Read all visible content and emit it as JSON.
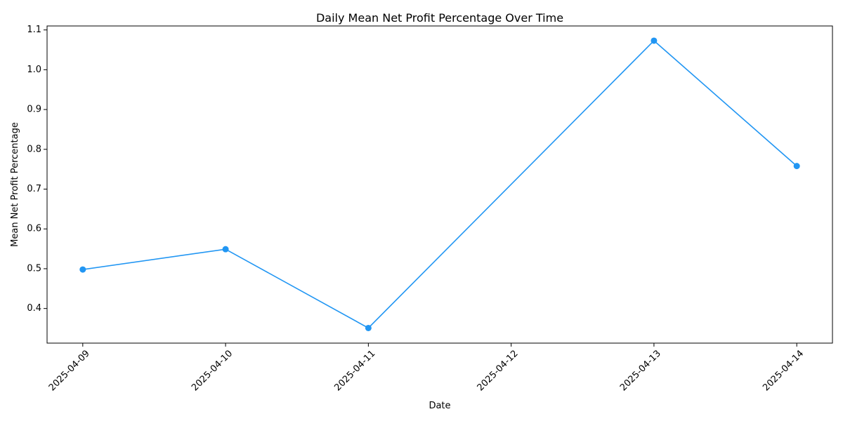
{
  "chart_data": {
    "type": "line",
    "title": "Daily Mean Net Profit Percentage Over Time",
    "xlabel": "Date",
    "ylabel": "Mean Net Profit Percentage",
    "x_ticks": [
      "2025-04-09",
      "2025-04-10",
      "2025-04-11",
      "2025-04-12",
      "2025-04-13",
      "2025-04-14"
    ],
    "y_ticks": [
      "0.4",
      "0.5",
      "0.6",
      "0.7",
      "0.8",
      "0.9",
      "1.0",
      "1.1"
    ],
    "xlim": [
      "2025-04-08T18:00",
      "2025-04-14T06:00"
    ],
    "ylim": [
      0.313,
      1.11
    ],
    "grid": false,
    "legend": "none",
    "series": [
      {
        "color": "#2196F3",
        "marker": "circle",
        "points": [
          {
            "x": "2025-04-09",
            "y": 0.498
          },
          {
            "x": "2025-04-10",
            "y": 0.549
          },
          {
            "x": "2025-04-11",
            "y": 0.351
          },
          {
            "x": "2025-04-13",
            "y": 1.073
          },
          {
            "x": "2025-04-14",
            "y": 0.758
          }
        ]
      }
    ]
  }
}
